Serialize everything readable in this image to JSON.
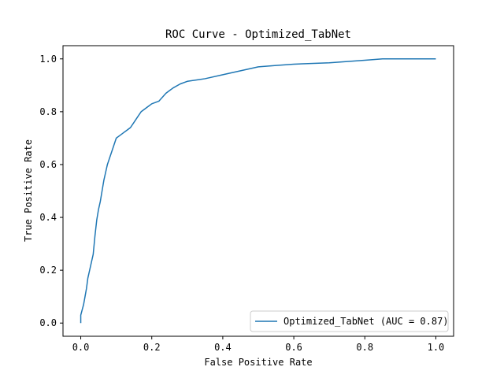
{
  "chart_data": {
    "type": "line",
    "title": "ROC Curve - Optimized_TabNet",
    "xlabel": "False Positive Rate",
    "ylabel": "True Positive Rate",
    "xlim": [
      -0.05,
      1.05
    ],
    "ylim": [
      -0.05,
      1.05
    ],
    "x_ticks": [
      "0.0",
      "0.2",
      "0.4",
      "0.6",
      "0.8",
      "1.0"
    ],
    "y_ticks": [
      "0.0",
      "0.2",
      "0.4",
      "0.6",
      "0.8",
      "1.0"
    ],
    "grid": false,
    "legend_position": "lower-right",
    "series": [
      {
        "name": "Optimized_TabNet (AUC = 0.87)",
        "color": "#1f77b4",
        "x": [
          0.0,
          0.0,
          0.004,
          0.008,
          0.012,
          0.016,
          0.02,
          0.025,
          0.03,
          0.035,
          0.04,
          0.045,
          0.05,
          0.055,
          0.06,
          0.065,
          0.07,
          0.075,
          0.08,
          0.09,
          0.1,
          0.11,
          0.12,
          0.13,
          0.14,
          0.15,
          0.16,
          0.17,
          0.18,
          0.19,
          0.2,
          0.22,
          0.24,
          0.25,
          0.26,
          0.28,
          0.3,
          0.35,
          0.4,
          0.45,
          0.5,
          0.55,
          0.6,
          0.7,
          0.8,
          0.85,
          0.9,
          1.0
        ],
        "y": [
          0.0,
          0.03,
          0.05,
          0.07,
          0.1,
          0.13,
          0.17,
          0.2,
          0.23,
          0.26,
          0.33,
          0.39,
          0.43,
          0.46,
          0.5,
          0.54,
          0.57,
          0.6,
          0.62,
          0.66,
          0.7,
          0.71,
          0.72,
          0.73,
          0.74,
          0.76,
          0.78,
          0.8,
          0.81,
          0.82,
          0.83,
          0.84,
          0.87,
          0.88,
          0.89,
          0.905,
          0.915,
          0.925,
          0.94,
          0.955,
          0.97,
          0.975,
          0.98,
          0.985,
          0.995,
          1.0,
          1.0,
          1.0
        ]
      }
    ]
  }
}
